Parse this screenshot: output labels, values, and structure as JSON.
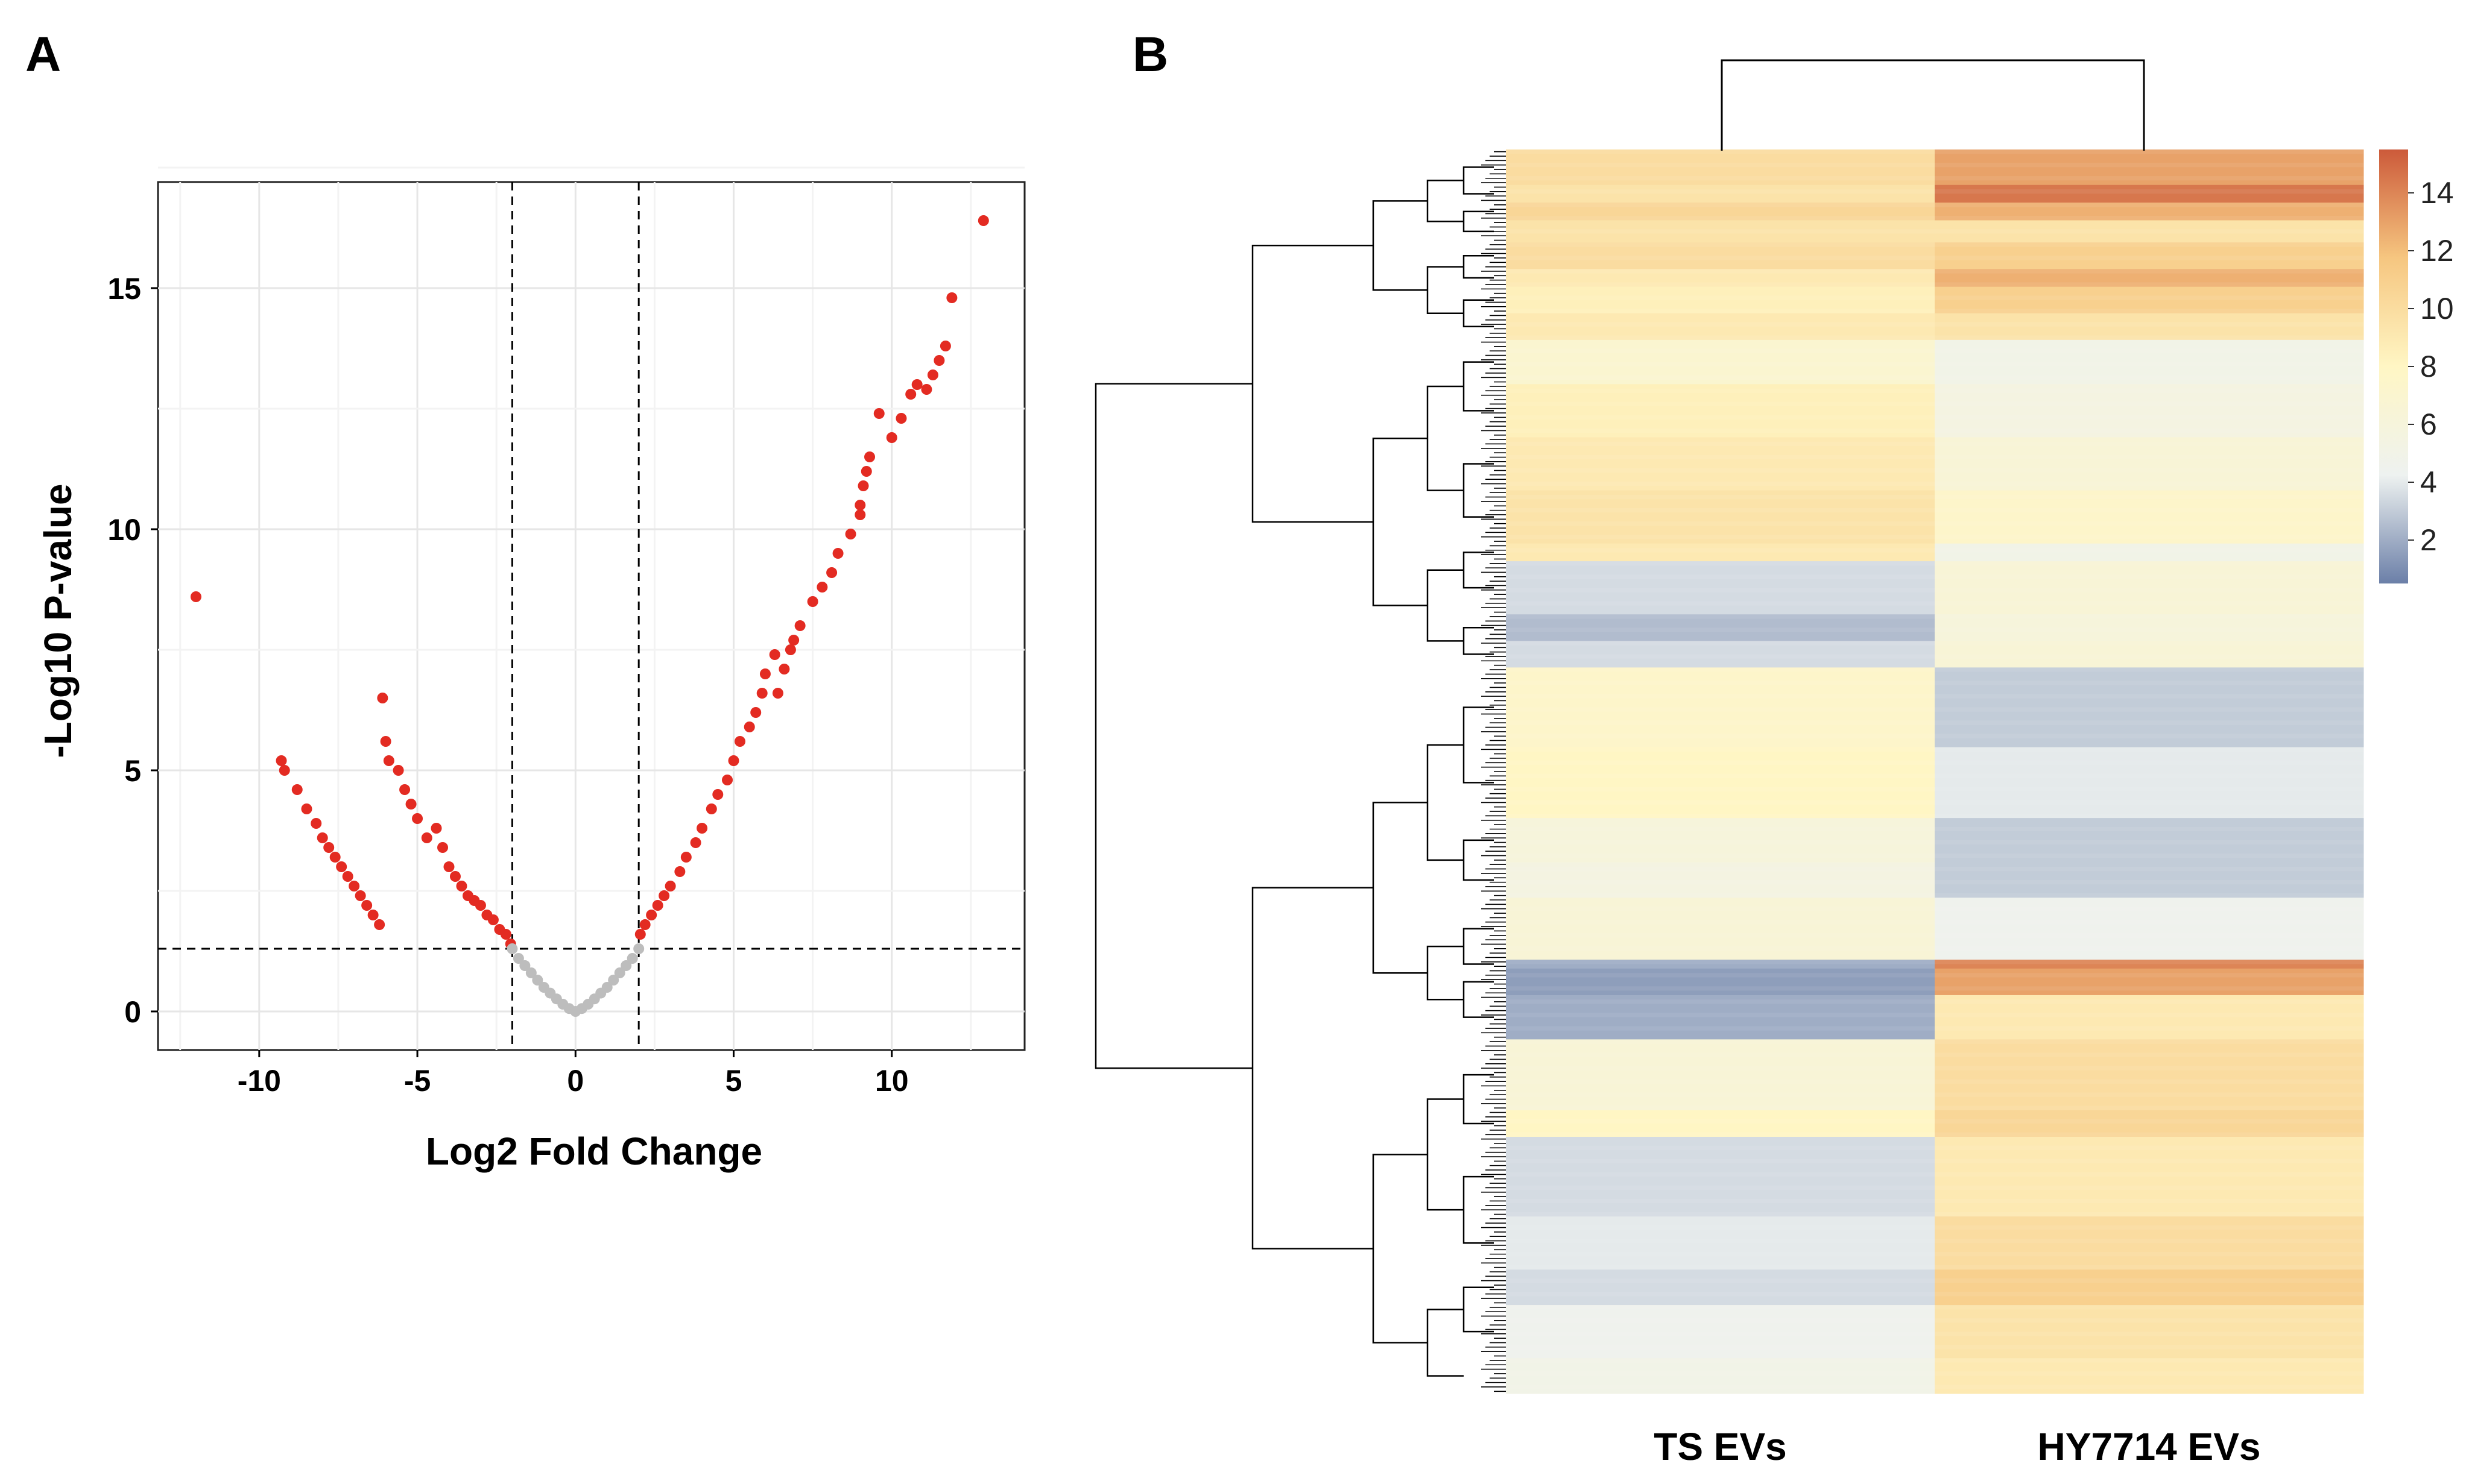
{
  "panels": {
    "a_label": "A",
    "b_label": "B"
  },
  "chart_data": [
    {
      "type": "scatter",
      "title": "",
      "xlabel": "Log2 Fold Change",
      "ylabel": "-Log10 P-value",
      "xlim": [
        -13.2,
        14.2
      ],
      "ylim": [
        -0.8,
        17.2
      ],
      "xticks": [
        -10,
        -5,
        0,
        5,
        10
      ],
      "yticks": [
        0,
        5,
        10,
        15
      ],
      "grid": true,
      "thresholds": {
        "fold_change": [
          -2,
          2
        ],
        "pvalue": 1.3
      },
      "colors": {
        "significant": "#e32b22",
        "not_significant": "#bdbdbd"
      },
      "series": [
        {
          "significant": true,
          "x": [
            12.9,
            11.9,
            11.7,
            11.5,
            11.3,
            11.1,
            10.8,
            10.6,
            10.3,
            10.0,
            9.6,
            9.3,
            9.2,
            9.1,
            9.0,
            9.0,
            8.7,
            8.3,
            8.1,
            7.8,
            7.5,
            7.1,
            6.9,
            6.8,
            6.6,
            6.4,
            6.3,
            6.0,
            5.9,
            5.7,
            5.5,
            5.2,
            5.0,
            4.8,
            4.5,
            4.3,
            4.0,
            3.8,
            3.5,
            3.3,
            3.0,
            2.8,
            2.6,
            2.4,
            2.2,
            2.05
          ],
          "y": [
            16.4,
            14.8,
            13.8,
            13.5,
            13.2,
            12.9,
            13.0,
            12.8,
            12.3,
            11.9,
            12.4,
            11.5,
            11.2,
            10.9,
            10.5,
            10.3,
            9.9,
            9.5,
            9.1,
            8.8,
            8.5,
            8.0,
            7.7,
            7.5,
            7.1,
            6.6,
            7.4,
            7.0,
            6.6,
            6.2,
            5.9,
            5.6,
            5.2,
            4.8,
            4.5,
            4.2,
            3.8,
            3.5,
            3.2,
            2.9,
            2.6,
            2.4,
            2.2,
            2.0,
            1.8,
            1.6
          ]
        },
        {
          "significant": true,
          "x": [
            -12.0,
            -9.3,
            -9.2,
            -8.8,
            -8.5,
            -8.2,
            -8.0,
            -7.8,
            -7.6,
            -7.4,
            -7.2,
            -7.0,
            -6.8,
            -6.6,
            -6.4,
            -6.2,
            -6.1,
            -6.0,
            -5.9,
            -5.6,
            -5.4,
            -5.2,
            -5.0,
            -4.7,
            -4.4,
            -4.2,
            -4.0,
            -3.8,
            -3.6,
            -3.4,
            -3.2,
            -3.0,
            -2.8,
            -2.6,
            -2.4,
            -2.2,
            -2.05
          ],
          "y": [
            8.6,
            5.2,
            5.0,
            4.6,
            4.2,
            3.9,
            3.6,
            3.4,
            3.2,
            3.0,
            2.8,
            2.6,
            2.4,
            2.2,
            2.0,
            1.8,
            6.5,
            5.6,
            5.2,
            5.0,
            4.6,
            4.3,
            4.0,
            3.6,
            3.8,
            3.4,
            3.0,
            2.8,
            2.6,
            2.4,
            2.3,
            2.2,
            2.0,
            1.9,
            1.7,
            1.6,
            1.4
          ]
        },
        {
          "significant": false,
          "x": [
            -2.0,
            -1.8,
            -1.6,
            -1.4,
            -1.2,
            -1.0,
            -0.8,
            -0.6,
            -0.4,
            -0.2,
            0.0,
            0.2,
            0.4,
            0.6,
            0.8,
            1.0,
            1.2,
            1.4,
            1.6,
            1.8,
            2.0
          ],
          "y": [
            1.3,
            1.1,
            0.95,
            0.8,
            0.65,
            0.5,
            0.38,
            0.26,
            0.15,
            0.06,
            0.0,
            0.06,
            0.15,
            0.26,
            0.38,
            0.5,
            0.65,
            0.8,
            0.95,
            1.1,
            1.3
          ]
        }
      ]
    },
    {
      "type": "heatmap",
      "title": "",
      "columns": [
        "TS EVs",
        "HY7714 EVs"
      ],
      "colorbar": {
        "ticks": [
          2,
          4,
          6,
          8,
          10,
          12,
          14
        ],
        "range": [
          0.5,
          15.5
        ],
        "colors": [
          "#6b7fa8",
          "#eef2f0",
          "#fff6c4",
          "#f6c680",
          "#cc5a3a"
        ]
      },
      "row_blocks": [
        {
          "rows": 8,
          "values": [
            10,
            13
          ]
        },
        {
          "rows": 4,
          "values": [
            9.5,
            14.5
          ]
        },
        {
          "rows": 4,
          "values": [
            10.5,
            12.5
          ]
        },
        {
          "rows": 5,
          "values": [
            9.5,
            9.5
          ]
        },
        {
          "rows": 6,
          "values": [
            10,
            11
          ]
        },
        {
          "rows": 4,
          "values": [
            9,
            12.5
          ]
        },
        {
          "rows": 6,
          "values": [
            8.5,
            11
          ]
        },
        {
          "rows": 6,
          "values": [
            9,
            9.5
          ]
        },
        {
          "rows": 10,
          "values": [
            7,
            5
          ]
        },
        {
          "rows": 12,
          "values": [
            8.5,
            5.5
          ]
        },
        {
          "rows": 12,
          "values": [
            9,
            6.5
          ]
        },
        {
          "rows": 12,
          "values": [
            9.5,
            7.5
          ]
        },
        {
          "rows": 4,
          "values": [
            9,
            5
          ]
        },
        {
          "rows": 12,
          "values": [
            3.5,
            6.5
          ]
        },
        {
          "rows": 6,
          "values": [
            2.5,
            6
          ]
        },
        {
          "rows": 6,
          "values": [
            3.5,
            6.5
          ]
        },
        {
          "rows": 18,
          "values": [
            7.5,
            3
          ]
        },
        {
          "rows": 16,
          "values": [
            8,
            4
          ]
        },
        {
          "rows": 10,
          "values": [
            6,
            3
          ]
        },
        {
          "rows": 8,
          "values": [
            5.5,
            3
          ]
        },
        {
          "rows": 14,
          "values": [
            6.5,
            4.5
          ]
        },
        {
          "rows": 2,
          "values": [
            2,
            14
          ]
        },
        {
          "rows": 6,
          "values": [
            1.5,
            13
          ]
        },
        {
          "rows": 10,
          "values": [
            2,
            9
          ]
        },
        {
          "rows": 16,
          "values": [
            6.5,
            10
          ]
        },
        {
          "rows": 6,
          "values": [
            8,
            10.5
          ]
        },
        {
          "rows": 18,
          "values": [
            3.5,
            9
          ]
        },
        {
          "rows": 12,
          "values": [
            4,
            10
          ]
        },
        {
          "rows": 8,
          "values": [
            3.5,
            11
          ]
        },
        {
          "rows": 12,
          "values": [
            4.5,
            9.5
          ]
        },
        {
          "rows": 8,
          "values": [
            5,
            9
          ]
        }
      ]
    }
  ]
}
